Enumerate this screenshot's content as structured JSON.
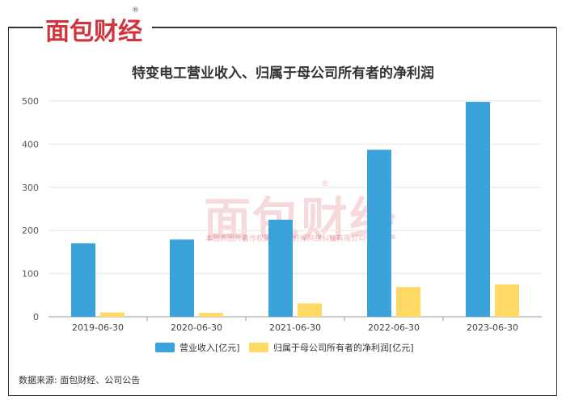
{
  "brand": {
    "logo_text": "面包财经",
    "registered": "®"
  },
  "watermark": {
    "logo_text": "面包财经",
    "registered": "®",
    "notice": "本图表图片著作权属于上海好探网络科技有限公司"
  },
  "chart_data": {
    "type": "bar",
    "title": "特变电工营业收入、归属于母公司所有者的净利润",
    "categories": [
      "2019-06-30",
      "2020-06-30",
      "2021-06-30",
      "2022-06-30",
      "2023-06-30"
    ],
    "series": [
      {
        "name": "营业收入[亿元]",
        "color": "#3ba2dc",
        "values": [
          170,
          179,
          225,
          387,
          498
        ]
      },
      {
        "name": "归属于母公司所有者的净利润[亿元]",
        "color": "#ffd966",
        "values": [
          10,
          9,
          31,
          69,
          75
        ]
      }
    ],
    "yticks": [
      0,
      100,
      200,
      300,
      400,
      500
    ],
    "ylim": [
      0,
      500
    ],
    "grid": true,
    "legend_position": "bottom"
  },
  "footer": {
    "source": "数据来源: 面包财经、公司公告"
  }
}
